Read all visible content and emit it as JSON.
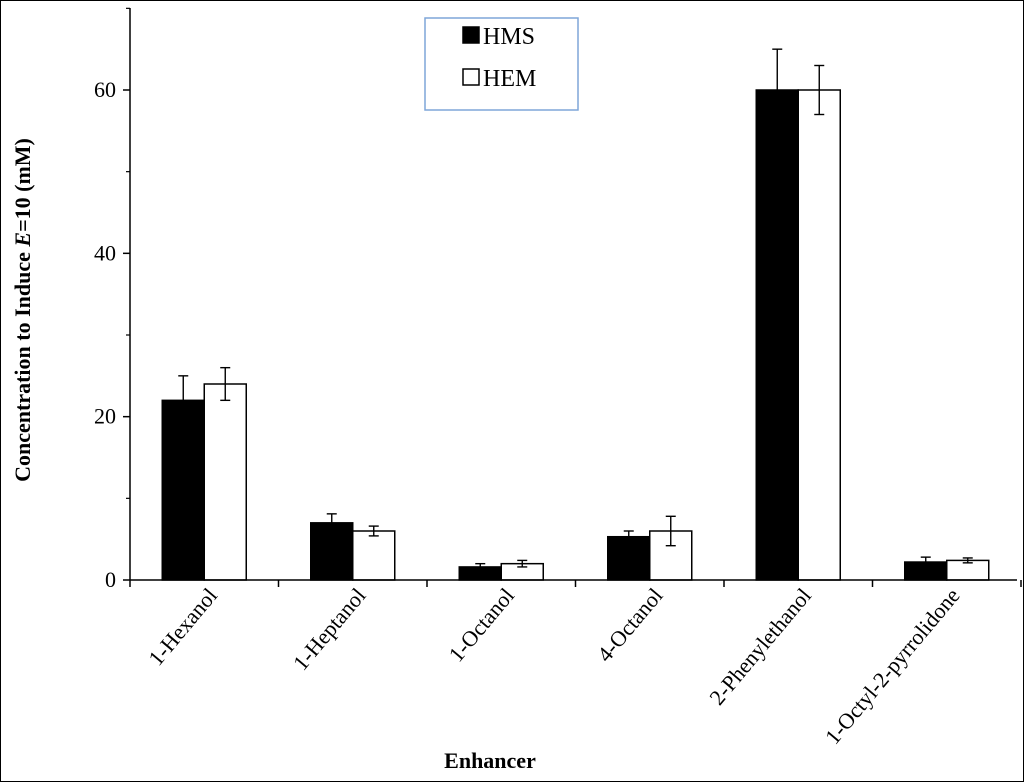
{
  "chart_data": {
    "type": "bar",
    "title": "",
    "xlabel": "Enhancer",
    "ylabel_parts": [
      "Concentration to Induce ",
      "E",
      "=10 (mM)"
    ],
    "ylim": [
      0,
      70
    ],
    "yticks": [
      0,
      20,
      40,
      60
    ],
    "grid": false,
    "legend_position": "top-center",
    "categories": [
      "1-Hexanol",
      "1-Heptanol",
      "1-Octanol",
      "4-Octanol",
      "2-Phenylethanol",
      "1-Octyl-2-pyrrolidone"
    ],
    "series": [
      {
        "name": "HMS",
        "color": "#000000",
        "values": [
          22,
          7,
          1.6,
          5.3,
          60,
          2.2
        ],
        "errors": [
          3,
          1.1,
          0.4,
          0.7,
          5,
          0.6
        ]
      },
      {
        "name": "HEM",
        "color": "#ffffff",
        "values": [
          24,
          6,
          2,
          6,
          60,
          2.4
        ],
        "errors": [
          2,
          0.6,
          0.4,
          1.8,
          3,
          0.3
        ]
      }
    ]
  }
}
